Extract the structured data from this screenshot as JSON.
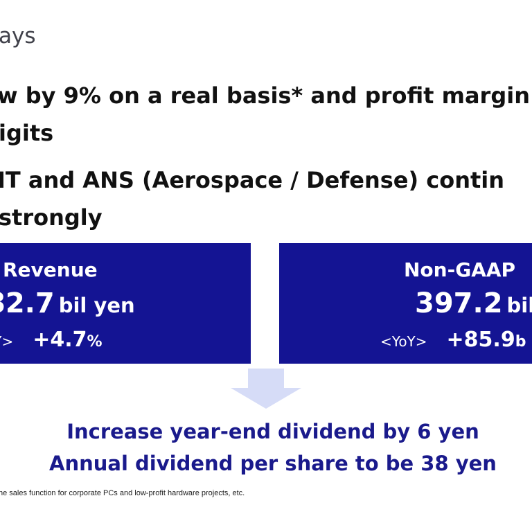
{
  "header": {
    "title": "ays"
  },
  "bullets": {
    "line1": "w by 9% on a real basis* and profit margin",
    "line1_cont": "igits",
    "line2": " IT and ANS (Aerospace / Defense) contin",
    "line2_cont": "strongly"
  },
  "panels": {
    "left": {
      "label": "Revenue",
      "value": "82.7",
      "unit": "bil yen",
      "yoy_tag": "oY>",
      "yoy_value": "+4.7",
      "yoy_suffix": "%"
    },
    "right": {
      "label": "Non-GAAP",
      "value": "397.2",
      "unit": "bil",
      "yoy_tag": "<YoY>",
      "yoy_value": "+85.9",
      "yoy_suffix": "b"
    }
  },
  "dividend": {
    "line1": "Increase year-end dividend by 6 yen",
    "line2": "Annual dividend per share to be 38 yen"
  },
  "footnote": "he sales function for corporate PCs and low-profit hardware projects, etc.",
  "colors": {
    "panel_bg": "#141493",
    "dividend_text": "#1a1a8c",
    "arrow": "#d6dcf7"
  }
}
